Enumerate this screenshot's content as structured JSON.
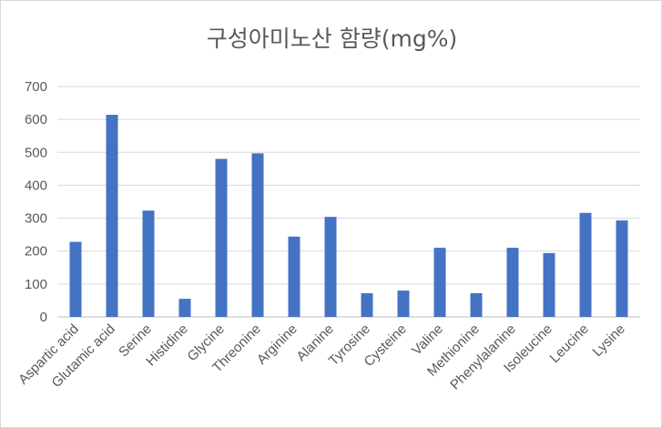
{
  "chart_data": {
    "type": "bar",
    "title": "구성아미노산 함량(mg%)",
    "xlabel": "",
    "ylabel": "",
    "ylim": [
      0,
      700
    ],
    "yticks": [
      "0",
      "100",
      "200",
      "300",
      "400",
      "500",
      "600",
      "700"
    ],
    "grid": true,
    "bar_color": "#4472C4",
    "categories": [
      "Aspartic acid",
      "Glutamic acid",
      "Serine",
      "Histidine",
      "Glycine",
      "Threonine",
      "Arginine",
      "Alanine",
      "Tyrosine",
      "Cysteine",
      "Valine",
      "Methionine",
      "Phenylalanine",
      "Isoleucine",
      "Leucine",
      "Lysine"
    ],
    "values": [
      228,
      614,
      323,
      55,
      480,
      497,
      244,
      304,
      72,
      80,
      210,
      72,
      210,
      194,
      316,
      293
    ]
  }
}
